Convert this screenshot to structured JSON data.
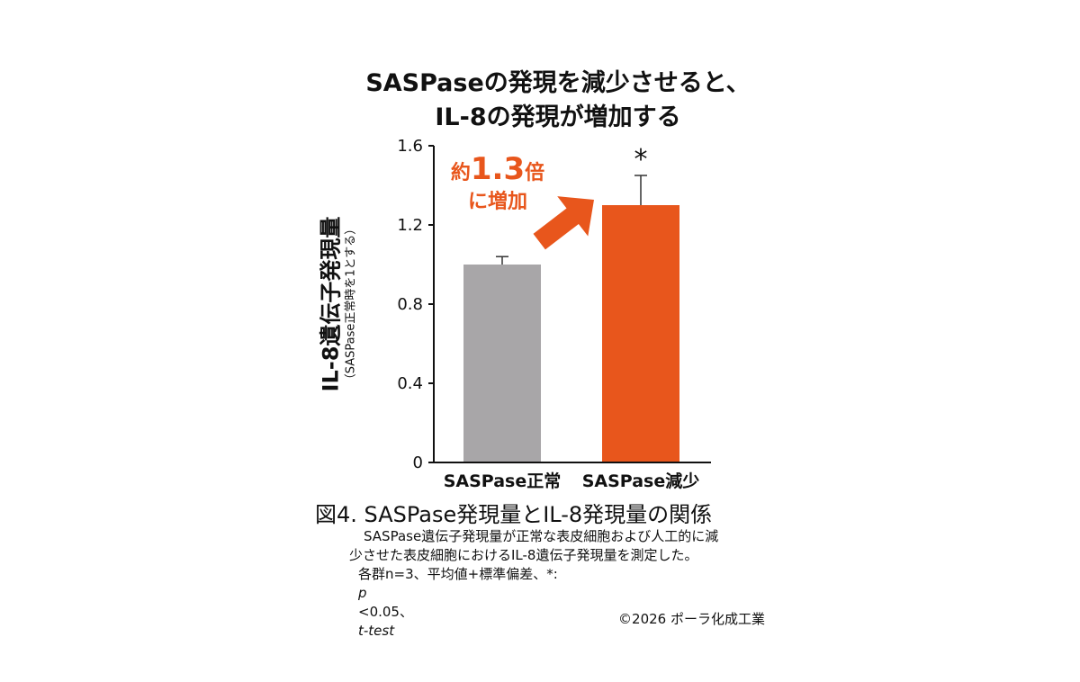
{
  "chart_data": {
    "type": "bar",
    "title_lines": [
      "SASPaseの発現を減少させると、",
      "IL-8の発現が増加する"
    ],
    "categories": [
      "SASPase正常",
      "SASPase減少"
    ],
    "values": [
      1.0,
      1.3
    ],
    "errors": [
      0.04,
      0.15
    ],
    "bar_colors": [
      "#a8a6a8",
      "#e8561c"
    ],
    "significance": [
      "",
      "*"
    ],
    "ylabel": "IL-8遺伝子発現量",
    "ylabel_sub": "（SASPase正常時を1とする）",
    "ylim": [
      0,
      1.6
    ],
    "yticks": [
      0,
      0.4,
      0.8,
      1.2,
      1.6
    ],
    "ytick_labels": [
      "0",
      "0.4",
      "0.8",
      "1.2",
      "1.6"
    ],
    "grid": false,
    "annotation": {
      "prefix": "約",
      "value": "1.3",
      "suffix": "倍",
      "line2_prefix": "に",
      "line2_bold": "増加",
      "color": "#e8561c"
    }
  },
  "caption": {
    "title": "図4. SASPase発現量とIL-8発現量の関係",
    "line1": "SASPase遺伝子発現量が正常な表皮細胞および人工的に減",
    "line2": "少させた表皮細胞におけるIL-8遺伝子発現量を測定した。",
    "line3_pre": "各群n=3、平均値+標準偏差、*:",
    "line3_p": "p",
    "line3_mid": "<0.05、",
    "line3_test": "t-test"
  },
  "copyright": "©2026 ポーラ化成工業"
}
